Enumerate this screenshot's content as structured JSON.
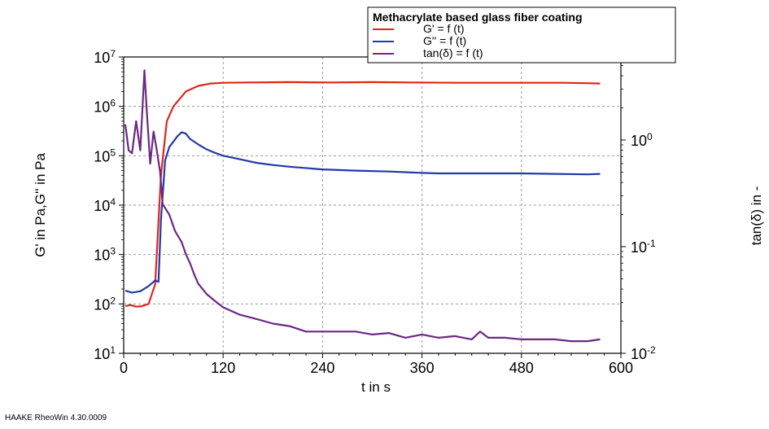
{
  "chart_data": {
    "type": "line",
    "legend_title": "Methacrylate based glass fiber coating",
    "legend_placement": "top-right",
    "xlabel": "t in s",
    "ylabel_left": "G' in Pa,G'' in Pa",
    "ylabel_right": "tan(δ) in -",
    "xlim": [
      0,
      600
    ],
    "x_ticks": [
      "0",
      "120",
      "240",
      "360",
      "480",
      "600"
    ],
    "ylim_left": [
      10,
      10000000
    ],
    "y_ticks_left": [
      {
        "base": "10",
        "exp": "1"
      },
      {
        "base": "10",
        "exp": "2"
      },
      {
        "base": "10",
        "exp": "3"
      },
      {
        "base": "10",
        "exp": "4"
      },
      {
        "base": "10",
        "exp": "5"
      },
      {
        "base": "10",
        "exp": "6"
      },
      {
        "base": "10",
        "exp": "7"
      }
    ],
    "y_scale_left": "log",
    "ylim_right": [
      0.01,
      6.0
    ],
    "y_ticks_right": [
      {
        "base": "10",
        "exp": "-2"
      },
      {
        "base": "10",
        "exp": "-1"
      },
      {
        "base": "10",
        "exp": "0"
      }
    ],
    "y_scale_right": "log",
    "grid": true,
    "series": [
      {
        "name": "G' = f (t)",
        "color": "#e0251b",
        "axis": "left",
        "x": [
          2,
          8,
          15,
          22,
          30,
          38,
          45,
          48,
          52,
          60,
          75,
          90,
          105,
          120,
          150,
          200,
          250,
          300,
          350,
          400,
          450,
          500,
          530,
          560,
          575
        ],
        "y": [
          90,
          95,
          88,
          90,
          100,
          250,
          40000,
          120000,
          500000,
          1000000,
          2000000,
          2600000,
          2900000,
          3000000,
          3050000,
          3100000,
          3050000,
          3100000,
          3050000,
          3000000,
          3000000,
          3000000,
          3000000,
          2950000,
          2900000
        ]
      },
      {
        "name": "G'' = f (t)",
        "color": "#2339a8",
        "axis": "left",
        "x": [
          2,
          10,
          20,
          30,
          38,
          42,
          45,
          50,
          55,
          65,
          70,
          75,
          80,
          90,
          100,
          110,
          120,
          140,
          160,
          180,
          200,
          240,
          280,
          320,
          360,
          380,
          400,
          440,
          480,
          520,
          560,
          575
        ],
        "y": [
          185,
          170,
          180,
          230,
          300,
          280,
          5000,
          80000,
          150000,
          250000,
          300000,
          280000,
          220000,
          170000,
          135000,
          115000,
          100000,
          85000,
          72000,
          65000,
          60000,
          53000,
          50000,
          48000,
          45000,
          44000,
          44000,
          44000,
          44000,
          43000,
          42000,
          43000
        ]
      },
      {
        "name": "tan(δ) = f (t)",
        "color": "#6d2784",
        "axis": "right",
        "x": [
          2,
          6,
          10,
          15,
          20,
          25,
          28,
          32,
          36,
          40,
          44,
          47,
          50,
          55,
          62,
          70,
          75,
          80,
          85,
          90,
          100,
          110,
          120,
          140,
          160,
          180,
          200,
          220,
          240,
          260,
          280,
          300,
          320,
          340,
          360,
          380,
          400,
          420,
          430,
          440,
          460,
          480,
          500,
          520,
          540,
          560,
          575
        ],
        "y": [
          1.4,
          0.8,
          0.75,
          1.5,
          0.8,
          4.5,
          1.8,
          0.6,
          1.2,
          0.8,
          0.5,
          0.25,
          0.23,
          0.2,
          0.14,
          0.11,
          0.085,
          0.07,
          0.055,
          0.045,
          0.036,
          0.031,
          0.027,
          0.023,
          0.021,
          0.019,
          0.018,
          0.016,
          0.016,
          0.016,
          0.016,
          0.015,
          0.0155,
          0.014,
          0.015,
          0.014,
          0.0145,
          0.0135,
          0.016,
          0.014,
          0.014,
          0.0135,
          0.0135,
          0.0135,
          0.013,
          0.013,
          0.0135
        ]
      }
    ]
  },
  "footer": "HAAKE RheoWin 4.30.0009"
}
